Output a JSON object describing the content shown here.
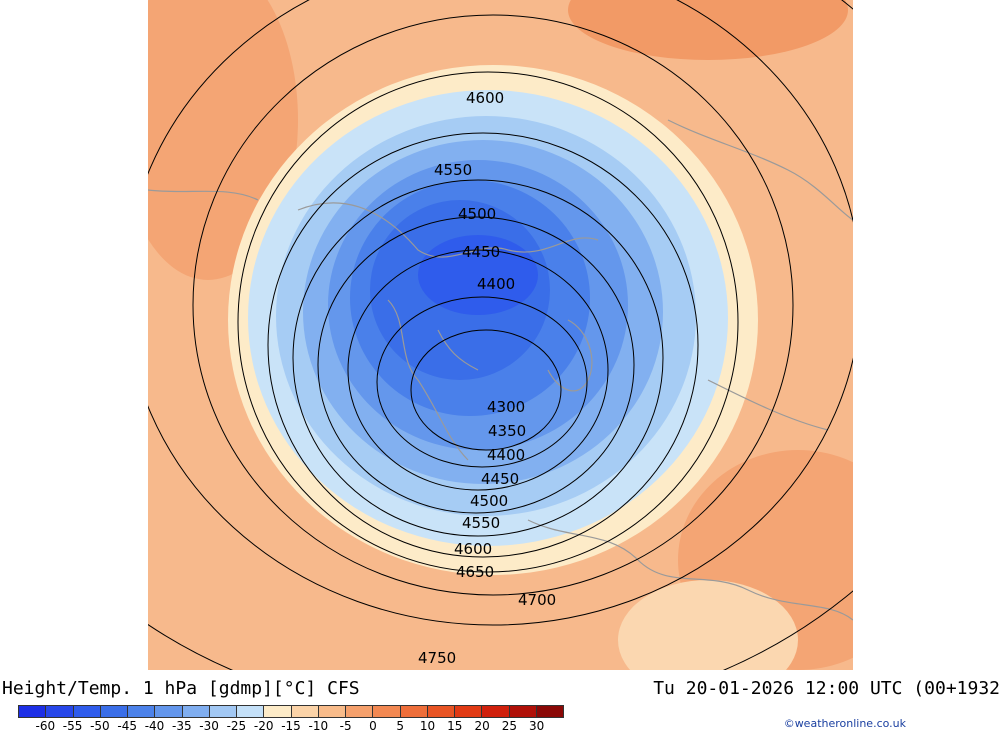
{
  "map": {
    "title": "Height/Temp. 1 hPa [gdmp][°C] CFS",
    "valid_time": "Tu 20-01-2026 12:00 UTC (00+1932",
    "credit": "©weatheronline.co.uk",
    "contour_labels": [
      "4600",
      "4550",
      "4500",
      "4450",
      "4400",
      "4300",
      "4350",
      "4400",
      "4450",
      "4500",
      "4550",
      "4600",
      "4650",
      "4700",
      "4750"
    ]
  },
  "legend": {
    "ticks": [
      "-60",
      "-55",
      "-50",
      "-45",
      "-40",
      "-35",
      "-30",
      "-25",
      "-20",
      "-15",
      "-10",
      "-5",
      "0",
      "5",
      "10",
      "15",
      "20",
      "25",
      "30"
    ],
    "colors": [
      "#1d2fe6",
      "#2747ea",
      "#2f5cec",
      "#3a6ee8",
      "#4c82ea",
      "#6396ec",
      "#80aef0",
      "#a2c8f4",
      "#c4e0f8",
      "#fdebc8",
      "#fbd3a8",
      "#f8bb8a",
      "#f5a06c",
      "#f28852",
      "#ee6e3a",
      "#e85424",
      "#e13a14",
      "#d0200c",
      "#b01008",
      "#8a0806"
    ]
  }
}
